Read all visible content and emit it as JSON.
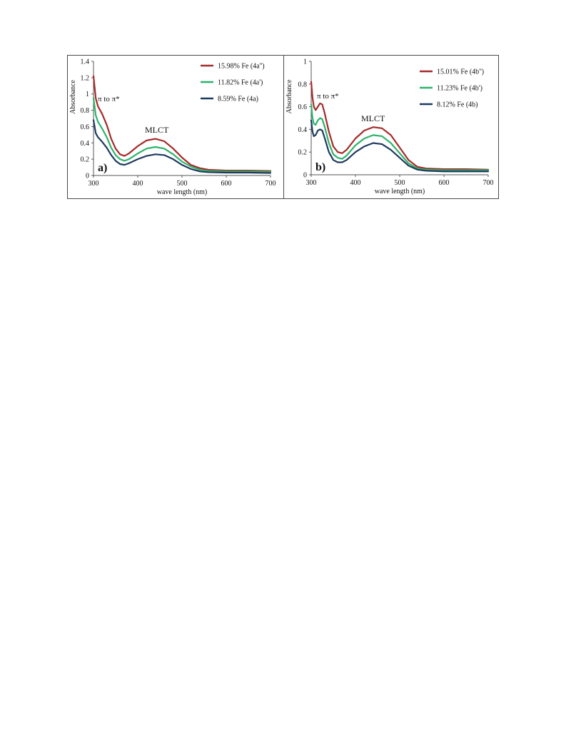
{
  "chart_data": [
    {
      "type": "line",
      "panel_label": "a)",
      "xlabel": "wave length (nm)",
      "ylabel": "Absorbance",
      "xlim": [
        300,
        700
      ],
      "ylim": [
        0,
        1.4
      ],
      "xticks": [
        "300",
        "400",
        "500",
        "600",
        "700"
      ],
      "yticks": [
        "0",
        "0.2",
        "0.4",
        "0.6",
        "0.8",
        "1",
        "1.2",
        "1.4"
      ],
      "grid": false,
      "legend_position": "top-right",
      "annotations": [
        "π to π*",
        "MLCT"
      ],
      "series": [
        {
          "name": "15.98% Fe (4a'')",
          "color": "#a52a2a",
          "x": [
            300,
            305,
            310,
            320,
            330,
            340,
            350,
            360,
            370,
            380,
            400,
            420,
            440,
            460,
            480,
            500,
            520,
            540,
            560,
            600,
            650,
            700
          ],
          "y": [
            1.22,
            0.95,
            0.85,
            0.75,
            0.62,
            0.45,
            0.33,
            0.26,
            0.24,
            0.27,
            0.36,
            0.43,
            0.45,
            0.42,
            0.33,
            0.22,
            0.13,
            0.09,
            0.07,
            0.06,
            0.06,
            0.055
          ]
        },
        {
          "name": "11.82% Fe (4a')",
          "color": "#2db36b",
          "x": [
            300,
            305,
            310,
            320,
            330,
            340,
            350,
            360,
            370,
            380,
            400,
            420,
            440,
            460,
            480,
            500,
            520,
            540,
            560,
            600,
            650,
            700
          ],
          "y": [
            0.95,
            0.74,
            0.66,
            0.57,
            0.47,
            0.34,
            0.25,
            0.2,
            0.18,
            0.2,
            0.27,
            0.33,
            0.35,
            0.33,
            0.26,
            0.17,
            0.11,
            0.07,
            0.055,
            0.05,
            0.05,
            0.045
          ]
        },
        {
          "name": "8.59% Fe (4a)",
          "color": "#1f3a5f",
          "x": [
            300,
            305,
            310,
            320,
            330,
            340,
            350,
            360,
            370,
            380,
            400,
            420,
            440,
            460,
            480,
            500,
            520,
            540,
            560,
            600,
            650,
            700
          ],
          "y": [
            0.68,
            0.52,
            0.47,
            0.41,
            0.34,
            0.25,
            0.18,
            0.14,
            0.13,
            0.15,
            0.2,
            0.24,
            0.26,
            0.25,
            0.2,
            0.13,
            0.08,
            0.05,
            0.04,
            0.035,
            0.035,
            0.03
          ]
        }
      ]
    },
    {
      "type": "line",
      "panel_label": "b)",
      "xlabel": "wave length (nm)",
      "ylabel": "Absorbance",
      "xlim": [
        300,
        700
      ],
      "ylim": [
        0,
        1
      ],
      "xticks": [
        "300",
        "400",
        "500",
        "600",
        "700"
      ],
      "yticks": [
        "0",
        "0.2",
        "0.4",
        "0.6",
        "0.8",
        "1"
      ],
      "grid": false,
      "legend_position": "top-right",
      "annotations": [
        "π to π*",
        "MLCT"
      ],
      "series": [
        {
          "name": "15.01% Fe (4b'')",
          "color": "#a52a2a",
          "x": [
            300,
            303,
            306,
            310,
            315,
            320,
            325,
            330,
            340,
            350,
            360,
            370,
            380,
            400,
            420,
            440,
            460,
            480,
            500,
            520,
            540,
            560,
            600,
            650,
            700
          ],
          "y": [
            0.82,
            0.68,
            0.6,
            0.57,
            0.6,
            0.63,
            0.62,
            0.55,
            0.38,
            0.25,
            0.2,
            0.19,
            0.22,
            0.32,
            0.39,
            0.42,
            0.41,
            0.35,
            0.24,
            0.13,
            0.07,
            0.055,
            0.05,
            0.05,
            0.045
          ]
        },
        {
          "name": "11.23% Fe (4b')",
          "color": "#2db36b",
          "x": [
            300,
            303,
            306,
            310,
            315,
            320,
            325,
            330,
            340,
            350,
            360,
            370,
            380,
            400,
            420,
            440,
            460,
            480,
            500,
            520,
            540,
            560,
            600,
            650,
            700
          ],
          "y": [
            0.62,
            0.5,
            0.45,
            0.44,
            0.48,
            0.5,
            0.49,
            0.43,
            0.28,
            0.18,
            0.15,
            0.14,
            0.17,
            0.26,
            0.32,
            0.35,
            0.34,
            0.28,
            0.19,
            0.1,
            0.055,
            0.045,
            0.04,
            0.04,
            0.04
          ]
        },
        {
          "name": "8.12% Fe (4b)",
          "color": "#1f3a5f",
          "x": [
            300,
            303,
            306,
            310,
            315,
            320,
            325,
            330,
            340,
            350,
            360,
            370,
            380,
            400,
            420,
            440,
            460,
            480,
            500,
            520,
            540,
            560,
            600,
            650,
            700
          ],
          "y": [
            0.48,
            0.38,
            0.34,
            0.35,
            0.39,
            0.4,
            0.39,
            0.33,
            0.2,
            0.13,
            0.11,
            0.11,
            0.13,
            0.2,
            0.25,
            0.28,
            0.27,
            0.22,
            0.15,
            0.08,
            0.045,
            0.035,
            0.03,
            0.03,
            0.03
          ]
        }
      ]
    }
  ]
}
